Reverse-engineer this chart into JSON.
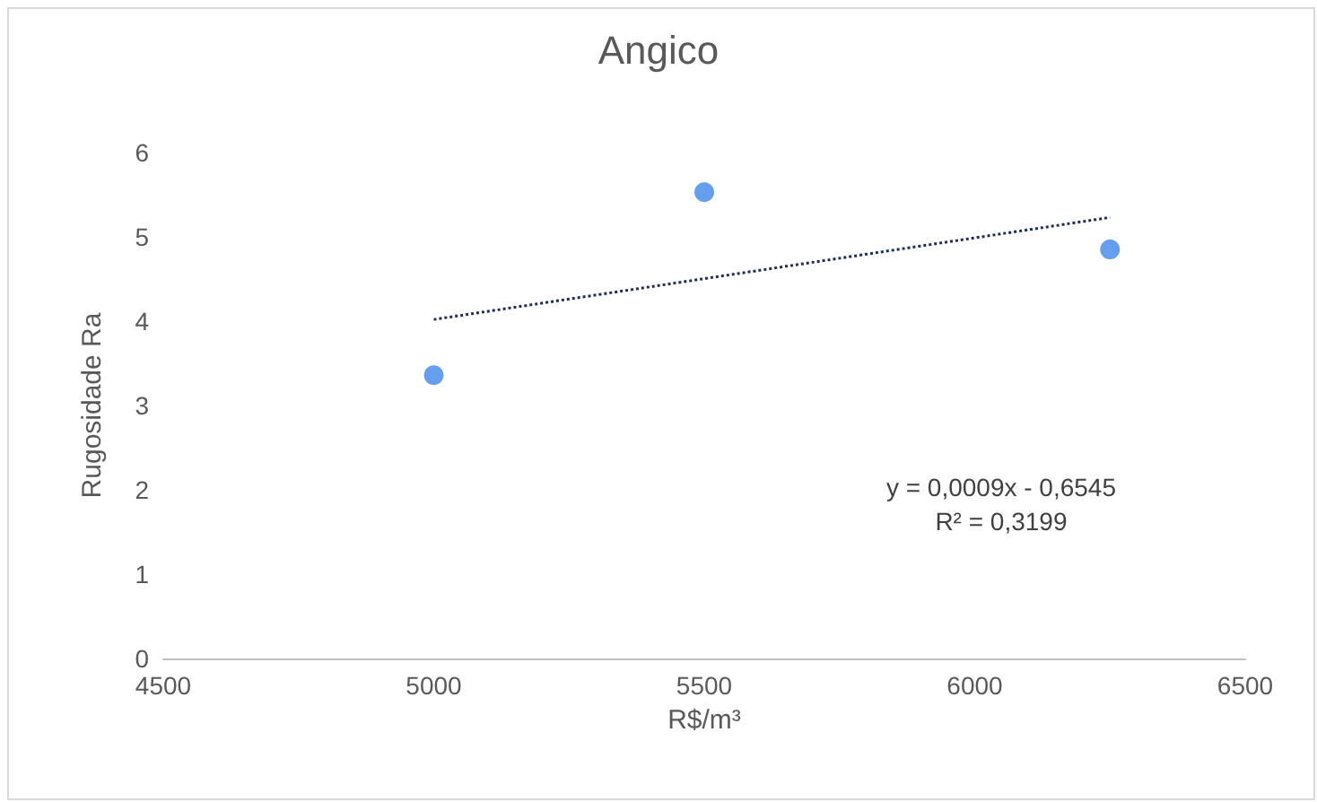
{
  "chart_data": {
    "type": "scatter",
    "title": "Angico",
    "xlabel": "R$/m³",
    "ylabel": "Rugosidade Ra",
    "xlim": [
      4500,
      6500
    ],
    "xticks": [
      4500,
      5000,
      5500,
      6000,
      6500
    ],
    "ylim": [
      0,
      6
    ],
    "yticks": [
      0,
      1,
      2,
      3,
      4,
      5,
      6
    ],
    "series": [
      {
        "type": "scatter",
        "color": "#3f86ea",
        "x": [
          5000,
          5500,
          6250
        ],
        "values": [
          3.36,
          5.53,
          4.85
        ]
      },
      {
        "type": "line",
        "color": "#1f2d5a",
        "x": [
          5000,
          6250
        ],
        "values": [
          4.02,
          5.23
        ],
        "marker": "none",
        "line_style": "dotted"
      }
    ],
    "annotations": [
      "y = 0,0009x - 0,6545\nR² = 0,3199"
    ],
    "grid": false,
    "marker": "circle"
  }
}
